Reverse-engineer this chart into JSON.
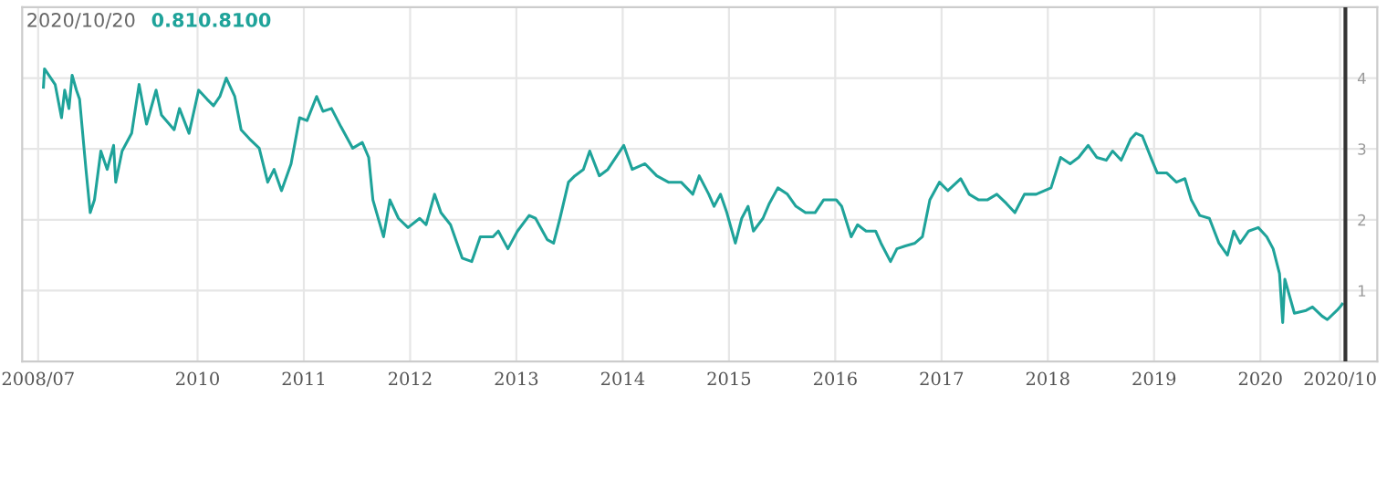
{
  "chart_data": {
    "type": "line",
    "annotations": [
      "2020/10/20",
      "0.810.8100"
    ],
    "x": [
      2008.55,
      2008.56,
      2008.66,
      2008.72,
      2008.75,
      2008.79,
      2008.82,
      2008.86,
      2008.89,
      2008.95,
      2008.99,
      2009.03,
      2009.09,
      2009.15,
      2009.21,
      2009.23,
      2009.29,
      2009.38,
      2009.45,
      2009.52,
      2009.61,
      2009.66,
      2009.78,
      2009.83,
      2009.92,
      2010.01,
      2010.09,
      2010.15,
      2010.21,
      2010.27,
      2010.35,
      2010.41,
      2010.49,
      2010.58,
      2010.66,
      2010.72,
      2010.79,
      2010.88,
      2010.96,
      2011.03,
      2011.12,
      2011.18,
      2011.26,
      2011.35,
      2011.46,
      2011.55,
      2011.61,
      2011.65,
      2011.75,
      2011.81,
      2011.89,
      2011.98,
      2012.09,
      2012.15,
      2012.23,
      2012.29,
      2012.38,
      2012.49,
      2012.58,
      2012.66,
      2012.78,
      2012.83,
      2012.92,
      2013.01,
      2013.12,
      2013.18,
      2013.29,
      2013.35,
      2013.41,
      2013.49,
      2013.55,
      2013.63,
      2013.69,
      2013.78,
      2013.86,
      2014.01,
      2014.09,
      2014.21,
      2014.32,
      2014.43,
      2014.55,
      2014.66,
      2014.72,
      2014.81,
      2014.86,
      2014.92,
      2014.98,
      2015.06,
      2015.12,
      2015.18,
      2015.23,
      2015.32,
      2015.38,
      2015.46,
      2015.55,
      2015.63,
      2015.72,
      2015.81,
      2015.89,
      2016.01,
      2016.06,
      2016.15,
      2016.21,
      2016.29,
      2016.38,
      2016.43,
      2016.52,
      2016.58,
      2016.66,
      2016.75,
      2016.82,
      2016.89,
      2016.98,
      2017.06,
      2017.18,
      2017.26,
      2017.35,
      2017.43,
      2017.52,
      2017.61,
      2017.69,
      2017.78,
      2017.89,
      2018.03,
      2018.12,
      2018.21,
      2018.29,
      2018.38,
      2018.46,
      2018.55,
      2018.61,
      2018.69,
      2018.78,
      2018.83,
      2018.89,
      2018.98,
      2019.03,
      2019.12,
      2019.21,
      2019.29,
      2019.35,
      2019.43,
      2019.52,
      2019.61,
      2019.69,
      2019.75,
      2019.81,
      2019.89,
      2019.98,
      2020.06,
      2020.12,
      2020.18,
      2020.21,
      2020.23,
      2020.32,
      2020.43,
      2020.49,
      2020.58,
      2020.63,
      2020.72,
      2020.75,
      2020.77
    ],
    "series": [
      {
        "color": "#1fa39a",
        "values": [
          3.87,
          4.13,
          3.91,
          3.44,
          3.83,
          3.57,
          4.04,
          3.83,
          3.7,
          2.71,
          2.1,
          2.28,
          2.97,
          2.71,
          3.05,
          2.53,
          2.97,
          3.22,
          3.91,
          3.35,
          3.83,
          3.48,
          3.27,
          3.57,
          3.22,
          3.83,
          3.7,
          3.61,
          3.74,
          4.0,
          3.74,
          3.27,
          3.14,
          3.01,
          2.53,
          2.71,
          2.41,
          2.79,
          3.44,
          3.4,
          3.74,
          3.53,
          3.57,
          3.31,
          3.01,
          3.09,
          2.88,
          2.28,
          1.76,
          2.28,
          2.02,
          1.89,
          2.02,
          1.93,
          2.36,
          2.1,
          1.93,
          1.46,
          1.41,
          1.76,
          1.76,
          1.84,
          1.59,
          1.84,
          2.06,
          2.02,
          1.72,
          1.67,
          2.02,
          2.53,
          2.62,
          2.71,
          2.97,
          2.62,
          2.71,
          3.05,
          2.71,
          2.79,
          2.62,
          2.53,
          2.53,
          2.36,
          2.62,
          2.36,
          2.19,
          2.36,
          2.1,
          1.67,
          2.02,
          2.19,
          1.84,
          2.02,
          2.23,
          2.45,
          2.36,
          2.19,
          2.1,
          2.1,
          2.28,
          2.28,
          2.19,
          1.76,
          1.93,
          1.84,
          1.84,
          1.67,
          1.41,
          1.59,
          1.63,
          1.67,
          1.76,
          2.28,
          2.53,
          2.41,
          2.58,
          2.36,
          2.28,
          2.28,
          2.36,
          2.23,
          2.1,
          2.36,
          2.36,
          2.45,
          2.88,
          2.79,
          2.88,
          3.05,
          2.88,
          2.84,
          2.97,
          2.84,
          3.14,
          3.22,
          3.18,
          2.84,
          2.66,
          2.66,
          2.53,
          2.58,
          2.28,
          2.06,
          2.02,
          1.67,
          1.5,
          1.84,
          1.67,
          1.84,
          1.89,
          1.76,
          1.59,
          1.24,
          0.55,
          1.16,
          0.68,
          0.72,
          0.77,
          0.64,
          0.59,
          0.72,
          0.77,
          0.81
        ]
      }
    ],
    "xlim": [
      2008.35,
      2021.1
    ],
    "ylim": [
      0,
      5
    ],
    "xticks": [
      {
        "value": 2008.5,
        "label": "2008/07"
      },
      2010,
      2011,
      2012,
      2013,
      2014,
      2015,
      2016,
      2017,
      2018,
      2019,
      2020,
      {
        "value": 2020.75,
        "label": "2020/10"
      }
    ],
    "yticks": [
      1,
      2,
      3,
      4
    ],
    "ref_lines": [
      {
        "axis": "x",
        "value": 2020.8,
        "color": "#333333"
      }
    ],
    "grid": true,
    "marker": "none",
    "line_style": "solid"
  }
}
